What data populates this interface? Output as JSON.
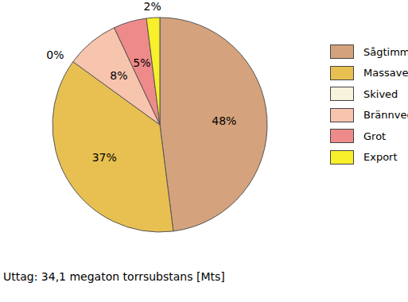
{
  "chart_data": {
    "type": "pie",
    "subtitle": "Uttag: 34,1 megaton torrsubstans [Mts]",
    "categories": [
      "Sågtimmer",
      "Massaved",
      "Skived",
      "Brännved",
      "Grot",
      "Export"
    ],
    "values": [
      48,
      37,
      0,
      8,
      5,
      2
    ],
    "value_labels": [
      "48%",
      "37%",
      "0%",
      "8%",
      "5%",
      "2%"
    ],
    "colors": [
      "#d4a27c",
      "#e8c052",
      "#f7f3dc",
      "#f7c4ad",
      "#ef8a8a",
      "#f7f02a"
    ],
    "data_labels": true,
    "legend": "right"
  }
}
